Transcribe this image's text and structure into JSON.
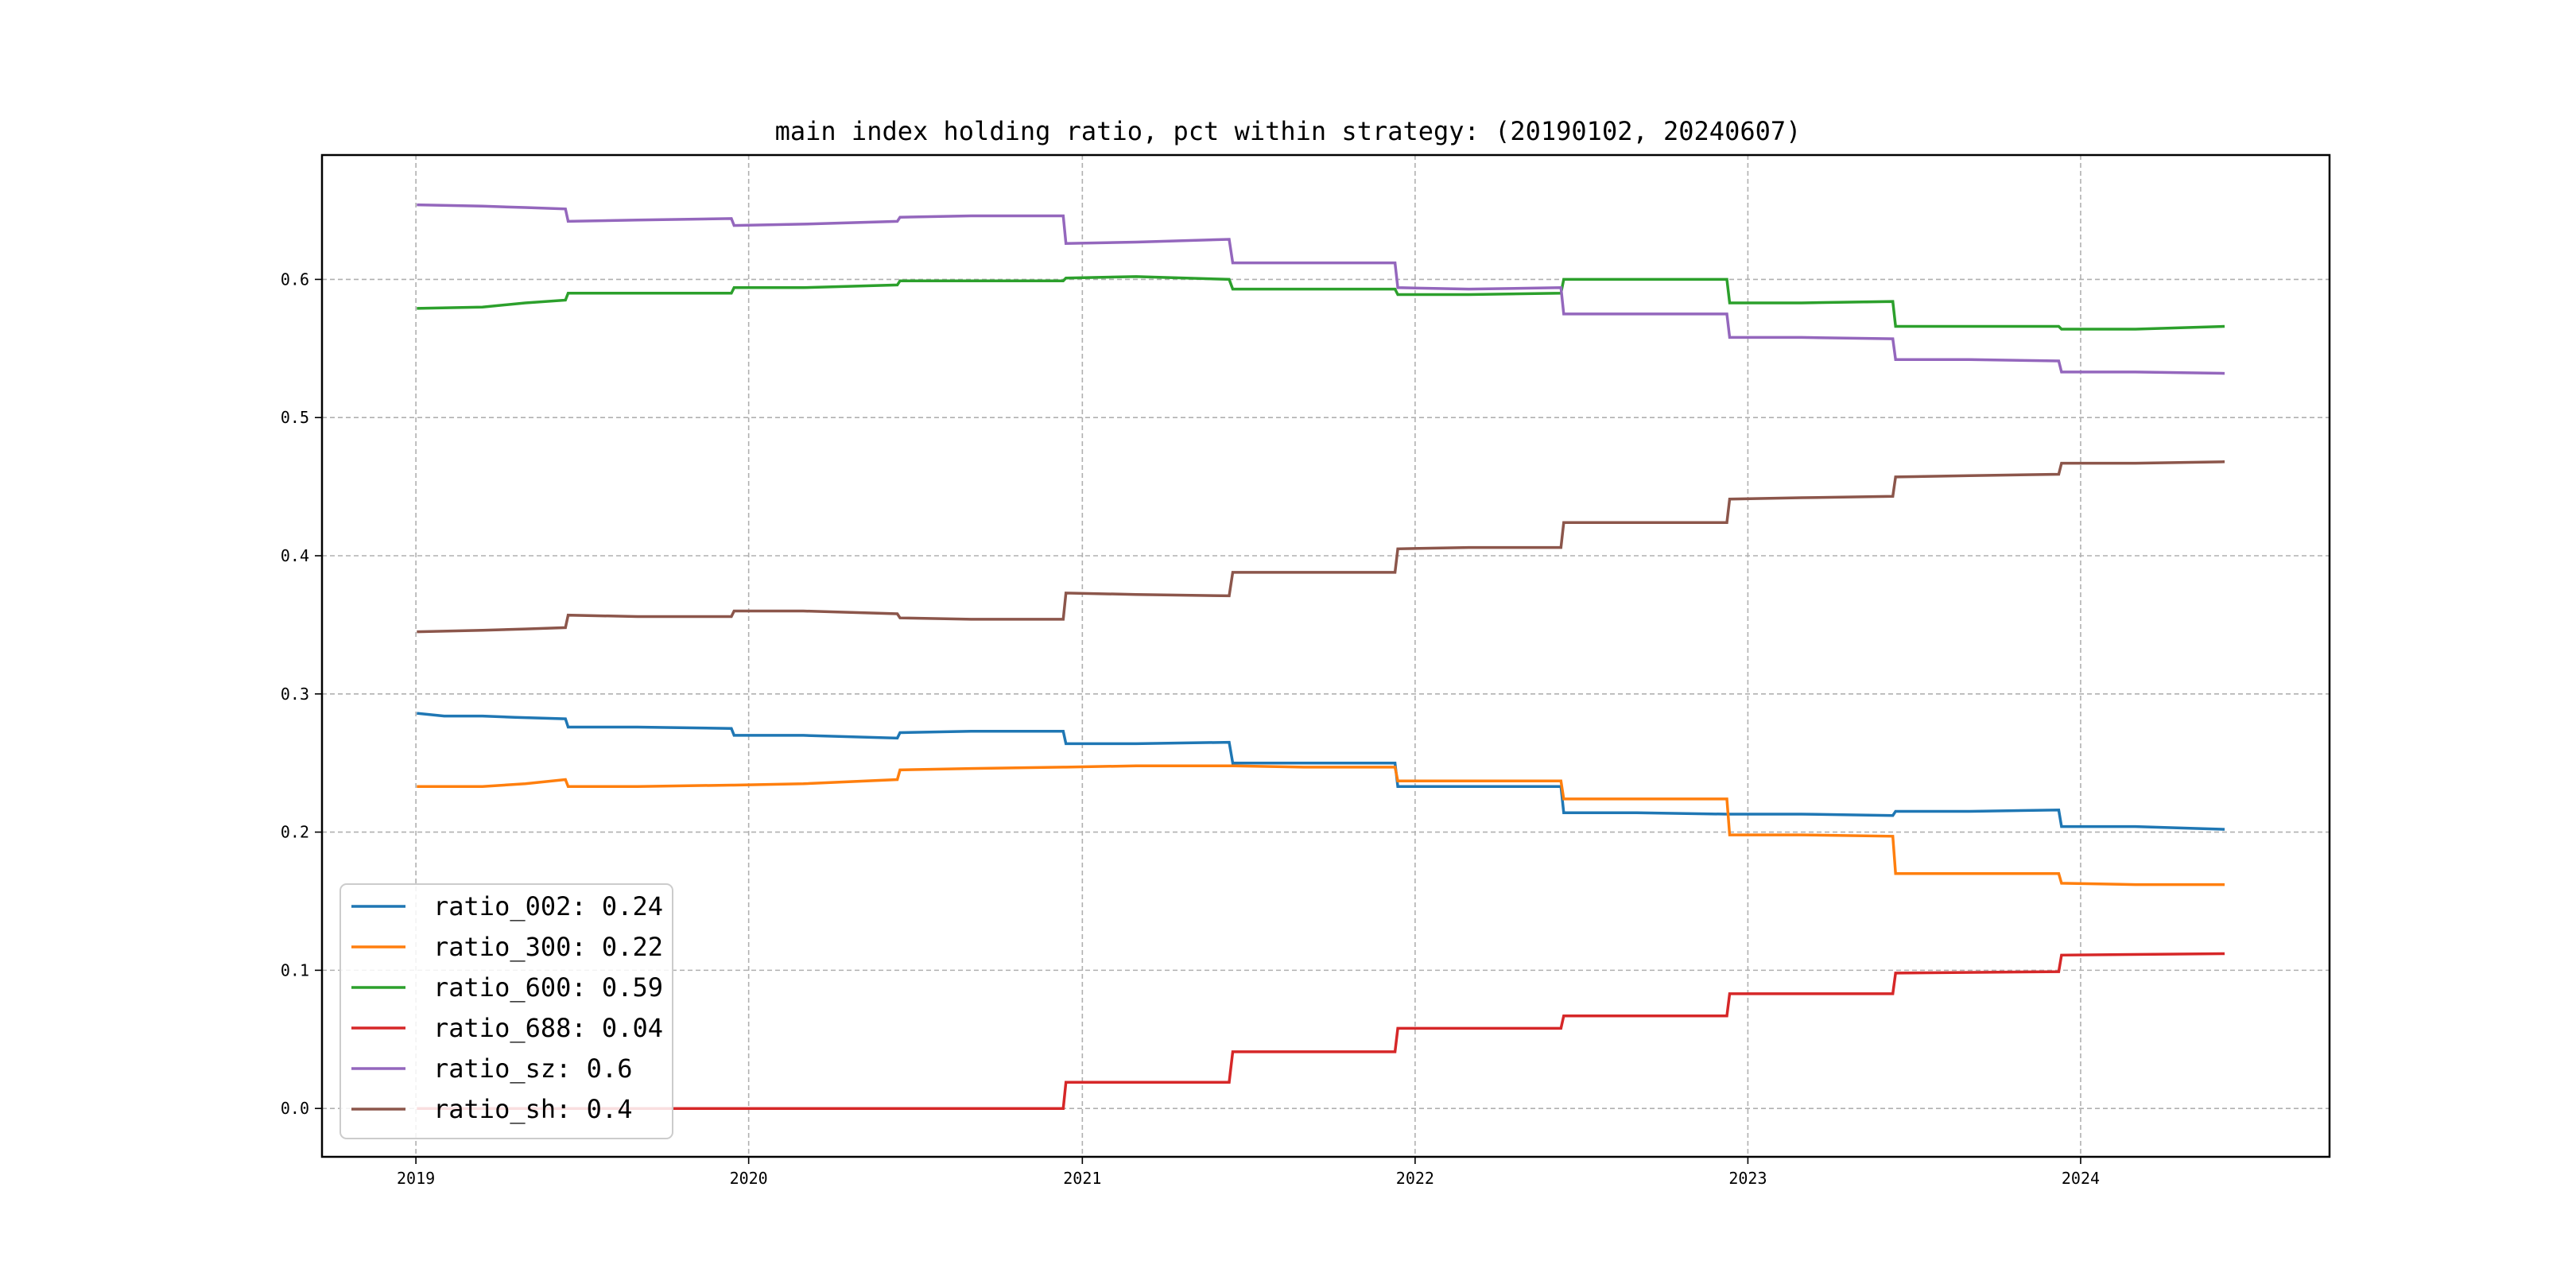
{
  "chart_data": {
    "type": "line",
    "title": "main index holding ratio, pct within strategy: (20190102, 20240607)",
    "xlabel": "",
    "ylabel": "",
    "x_range": [
      "2018-09-20",
      "2024-09-30"
    ],
    "ylim": [
      -0.035,
      0.69
    ],
    "x_ticks": [
      {
        "date": "2019-01-01",
        "label": "2019"
      },
      {
        "date": "2020-01-01",
        "label": "2020"
      },
      {
        "date": "2021-01-01",
        "label": "2021"
      },
      {
        "date": "2022-01-01",
        "label": "2022"
      },
      {
        "date": "2023-01-01",
        "label": "2023"
      },
      {
        "date": "2024-01-01",
        "label": "2024"
      }
    ],
    "y_ticks": [
      {
        "value": 0.0,
        "label": "0.0"
      },
      {
        "value": 0.1,
        "label": "0.1"
      },
      {
        "value": 0.2,
        "label": "0.2"
      },
      {
        "value": 0.3,
        "label": "0.3"
      },
      {
        "value": 0.4,
        "label": "0.4"
      },
      {
        "value": 0.5,
        "label": "0.5"
      },
      {
        "value": 0.6,
        "label": "0.6"
      }
    ],
    "grid": true,
    "legend_position": "bottom-left",
    "series": [
      {
        "name": "ratio_002: 0.24",
        "color": "#1f77b4",
        "points": [
          [
            "2019-01-02",
            0.286
          ],
          [
            "2019-02-01",
            0.284
          ],
          [
            "2019-03-15",
            0.284
          ],
          [
            "2019-04-20",
            0.283
          ],
          [
            "2019-06-14",
            0.282
          ],
          [
            "2019-06-17",
            0.276
          ],
          [
            "2019-09-01",
            0.276
          ],
          [
            "2019-12-13",
            0.275
          ],
          [
            "2019-12-16",
            0.27
          ],
          [
            "2020-03-01",
            0.27
          ],
          [
            "2020-06-12",
            0.268
          ],
          [
            "2020-06-15",
            0.272
          ],
          [
            "2020-09-01",
            0.273
          ],
          [
            "2020-12-11",
            0.273
          ],
          [
            "2020-12-14",
            0.264
          ],
          [
            "2021-03-01",
            0.264
          ],
          [
            "2021-06-11",
            0.265
          ],
          [
            "2021-06-15",
            0.25
          ],
          [
            "2021-09-01",
            0.25
          ],
          [
            "2021-12-10",
            0.25
          ],
          [
            "2021-12-13",
            0.233
          ],
          [
            "2022-03-01",
            0.233
          ],
          [
            "2022-06-10",
            0.233
          ],
          [
            "2022-06-13",
            0.214
          ],
          [
            "2022-09-01",
            0.214
          ],
          [
            "2022-12-09",
            0.213
          ],
          [
            "2022-12-12",
            0.213
          ],
          [
            "2023-03-01",
            0.213
          ],
          [
            "2023-06-09",
            0.212
          ],
          [
            "2023-06-12",
            0.215
          ],
          [
            "2023-09-01",
            0.215
          ],
          [
            "2023-12-08",
            0.216
          ],
          [
            "2023-12-11",
            0.204
          ],
          [
            "2024-03-01",
            0.204
          ],
          [
            "2024-06-07",
            0.202
          ]
        ]
      },
      {
        "name": "ratio_300: 0.22",
        "color": "#ff7f0e",
        "points": [
          [
            "2019-01-02",
            0.233
          ],
          [
            "2019-03-15",
            0.233
          ],
          [
            "2019-05-01",
            0.235
          ],
          [
            "2019-06-14",
            0.238
          ],
          [
            "2019-06-17",
            0.233
          ],
          [
            "2019-09-01",
            0.233
          ],
          [
            "2019-12-13",
            0.234
          ],
          [
            "2019-12-16",
            0.234
          ],
          [
            "2020-03-01",
            0.235
          ],
          [
            "2020-06-12",
            0.238
          ],
          [
            "2020-06-15",
            0.245
          ],
          [
            "2020-09-01",
            0.246
          ],
          [
            "2020-12-11",
            0.247
          ],
          [
            "2020-12-14",
            0.247
          ],
          [
            "2021-03-01",
            0.248
          ],
          [
            "2021-06-11",
            0.248
          ],
          [
            "2021-06-15",
            0.248
          ],
          [
            "2021-09-01",
            0.247
          ],
          [
            "2021-12-10",
            0.247
          ],
          [
            "2021-12-13",
            0.237
          ],
          [
            "2022-03-01",
            0.237
          ],
          [
            "2022-06-10",
            0.237
          ],
          [
            "2022-06-13",
            0.224
          ],
          [
            "2022-09-01",
            0.224
          ],
          [
            "2022-12-09",
            0.224
          ],
          [
            "2022-12-12",
            0.198
          ],
          [
            "2023-03-01",
            0.198
          ],
          [
            "2023-06-09",
            0.197
          ],
          [
            "2023-06-12",
            0.17
          ],
          [
            "2023-09-01",
            0.17
          ],
          [
            "2023-12-08",
            0.17
          ],
          [
            "2023-12-11",
            0.163
          ],
          [
            "2024-03-01",
            0.162
          ],
          [
            "2024-06-07",
            0.162
          ]
        ]
      },
      {
        "name": "ratio_600: 0.59",
        "color": "#2ca02c",
        "points": [
          [
            "2019-01-02",
            0.579
          ],
          [
            "2019-03-15",
            0.58
          ],
          [
            "2019-05-01",
            0.583
          ],
          [
            "2019-06-14",
            0.585
          ],
          [
            "2019-06-17",
            0.59
          ],
          [
            "2019-09-01",
            0.59
          ],
          [
            "2019-12-13",
            0.59
          ],
          [
            "2019-12-16",
            0.594
          ],
          [
            "2020-03-01",
            0.594
          ],
          [
            "2020-06-12",
            0.596
          ],
          [
            "2020-06-15",
            0.599
          ],
          [
            "2020-09-01",
            0.599
          ],
          [
            "2020-12-11",
            0.599
          ],
          [
            "2020-12-14",
            0.601
          ],
          [
            "2021-03-01",
            0.602
          ],
          [
            "2021-06-11",
            0.6
          ],
          [
            "2021-06-15",
            0.593
          ],
          [
            "2021-09-01",
            0.593
          ],
          [
            "2021-12-10",
            0.593
          ],
          [
            "2021-12-13",
            0.589
          ],
          [
            "2022-03-01",
            0.589
          ],
          [
            "2022-06-10",
            0.59
          ],
          [
            "2022-06-13",
            0.6
          ],
          [
            "2022-09-01",
            0.6
          ],
          [
            "2022-12-09",
            0.6
          ],
          [
            "2022-12-12",
            0.583
          ],
          [
            "2023-03-01",
            0.583
          ],
          [
            "2023-06-09",
            0.584
          ],
          [
            "2023-06-12",
            0.566
          ],
          [
            "2023-09-01",
            0.566
          ],
          [
            "2023-12-08",
            0.566
          ],
          [
            "2023-12-11",
            0.564
          ],
          [
            "2024-03-01",
            0.564
          ],
          [
            "2024-06-07",
            0.566
          ]
        ]
      },
      {
        "name": "ratio_688: 0.04",
        "color": "#d62728",
        "points": [
          [
            "2019-01-02",
            0.0
          ],
          [
            "2020-12-11",
            0.0
          ],
          [
            "2020-12-14",
            0.019
          ],
          [
            "2021-06-11",
            0.019
          ],
          [
            "2021-06-15",
            0.041
          ],
          [
            "2021-12-10",
            0.041
          ],
          [
            "2021-12-13",
            0.058
          ],
          [
            "2022-06-10",
            0.058
          ],
          [
            "2022-06-13",
            0.067
          ],
          [
            "2022-12-09",
            0.067
          ],
          [
            "2022-12-12",
            0.083
          ],
          [
            "2023-06-09",
            0.083
          ],
          [
            "2023-06-12",
            0.098
          ],
          [
            "2023-12-08",
            0.099
          ],
          [
            "2023-12-11",
            0.111
          ],
          [
            "2024-06-07",
            0.112
          ]
        ]
      },
      {
        "name": "ratio_sz: 0.6",
        "color": "#9467bd",
        "points": [
          [
            "2019-01-02",
            0.654
          ],
          [
            "2019-03-15",
            0.653
          ],
          [
            "2019-05-01",
            0.652
          ],
          [
            "2019-06-14",
            0.651
          ],
          [
            "2019-06-17",
            0.642
          ],
          [
            "2019-09-01",
            0.643
          ],
          [
            "2019-12-13",
            0.644
          ],
          [
            "2019-12-16",
            0.639
          ],
          [
            "2020-03-01",
            0.64
          ],
          [
            "2020-06-12",
            0.642
          ],
          [
            "2020-06-15",
            0.645
          ],
          [
            "2020-09-01",
            0.646
          ],
          [
            "2020-12-11",
            0.646
          ],
          [
            "2020-12-14",
            0.626
          ],
          [
            "2021-03-01",
            0.627
          ],
          [
            "2021-06-11",
            0.629
          ],
          [
            "2021-06-15",
            0.612
          ],
          [
            "2021-09-01",
            0.612
          ],
          [
            "2021-12-10",
            0.612
          ],
          [
            "2021-12-13",
            0.594
          ],
          [
            "2022-03-01",
            0.593
          ],
          [
            "2022-06-10",
            0.594
          ],
          [
            "2022-06-13",
            0.575
          ],
          [
            "2022-09-01",
            0.575
          ],
          [
            "2022-12-09",
            0.575
          ],
          [
            "2022-12-12",
            0.558
          ],
          [
            "2023-03-01",
            0.558
          ],
          [
            "2023-06-09",
            0.557
          ],
          [
            "2023-06-12",
            0.542
          ],
          [
            "2023-09-01",
            0.542
          ],
          [
            "2023-12-08",
            0.541
          ],
          [
            "2023-12-11",
            0.533
          ],
          [
            "2024-03-01",
            0.533
          ],
          [
            "2024-06-07",
            0.532
          ]
        ]
      },
      {
        "name": "ratio_sh: 0.4",
        "color": "#8c564b",
        "points": [
          [
            "2019-01-02",
            0.345
          ],
          [
            "2019-03-15",
            0.346
          ],
          [
            "2019-05-01",
            0.347
          ],
          [
            "2019-06-14",
            0.348
          ],
          [
            "2019-06-17",
            0.357
          ],
          [
            "2019-09-01",
            0.356
          ],
          [
            "2019-12-13",
            0.356
          ],
          [
            "2019-12-16",
            0.36
          ],
          [
            "2020-03-01",
            0.36
          ],
          [
            "2020-06-12",
            0.358
          ],
          [
            "2020-06-15",
            0.355
          ],
          [
            "2020-09-01",
            0.354
          ],
          [
            "2020-12-11",
            0.354
          ],
          [
            "2020-12-14",
            0.373
          ],
          [
            "2021-03-01",
            0.372
          ],
          [
            "2021-06-11",
            0.371
          ],
          [
            "2021-06-15",
            0.388
          ],
          [
            "2021-09-01",
            0.388
          ],
          [
            "2021-12-10",
            0.388
          ],
          [
            "2021-12-13",
            0.405
          ],
          [
            "2022-03-01",
            0.406
          ],
          [
            "2022-06-10",
            0.406
          ],
          [
            "2022-06-13",
            0.424
          ],
          [
            "2022-09-01",
            0.424
          ],
          [
            "2022-12-09",
            0.424
          ],
          [
            "2022-12-12",
            0.441
          ],
          [
            "2023-03-01",
            0.442
          ],
          [
            "2023-06-09",
            0.443
          ],
          [
            "2023-06-12",
            0.457
          ],
          [
            "2023-09-01",
            0.458
          ],
          [
            "2023-12-08",
            0.459
          ],
          [
            "2023-12-11",
            0.467
          ],
          [
            "2024-03-01",
            0.467
          ],
          [
            "2024-06-07",
            0.468
          ]
        ]
      }
    ]
  }
}
